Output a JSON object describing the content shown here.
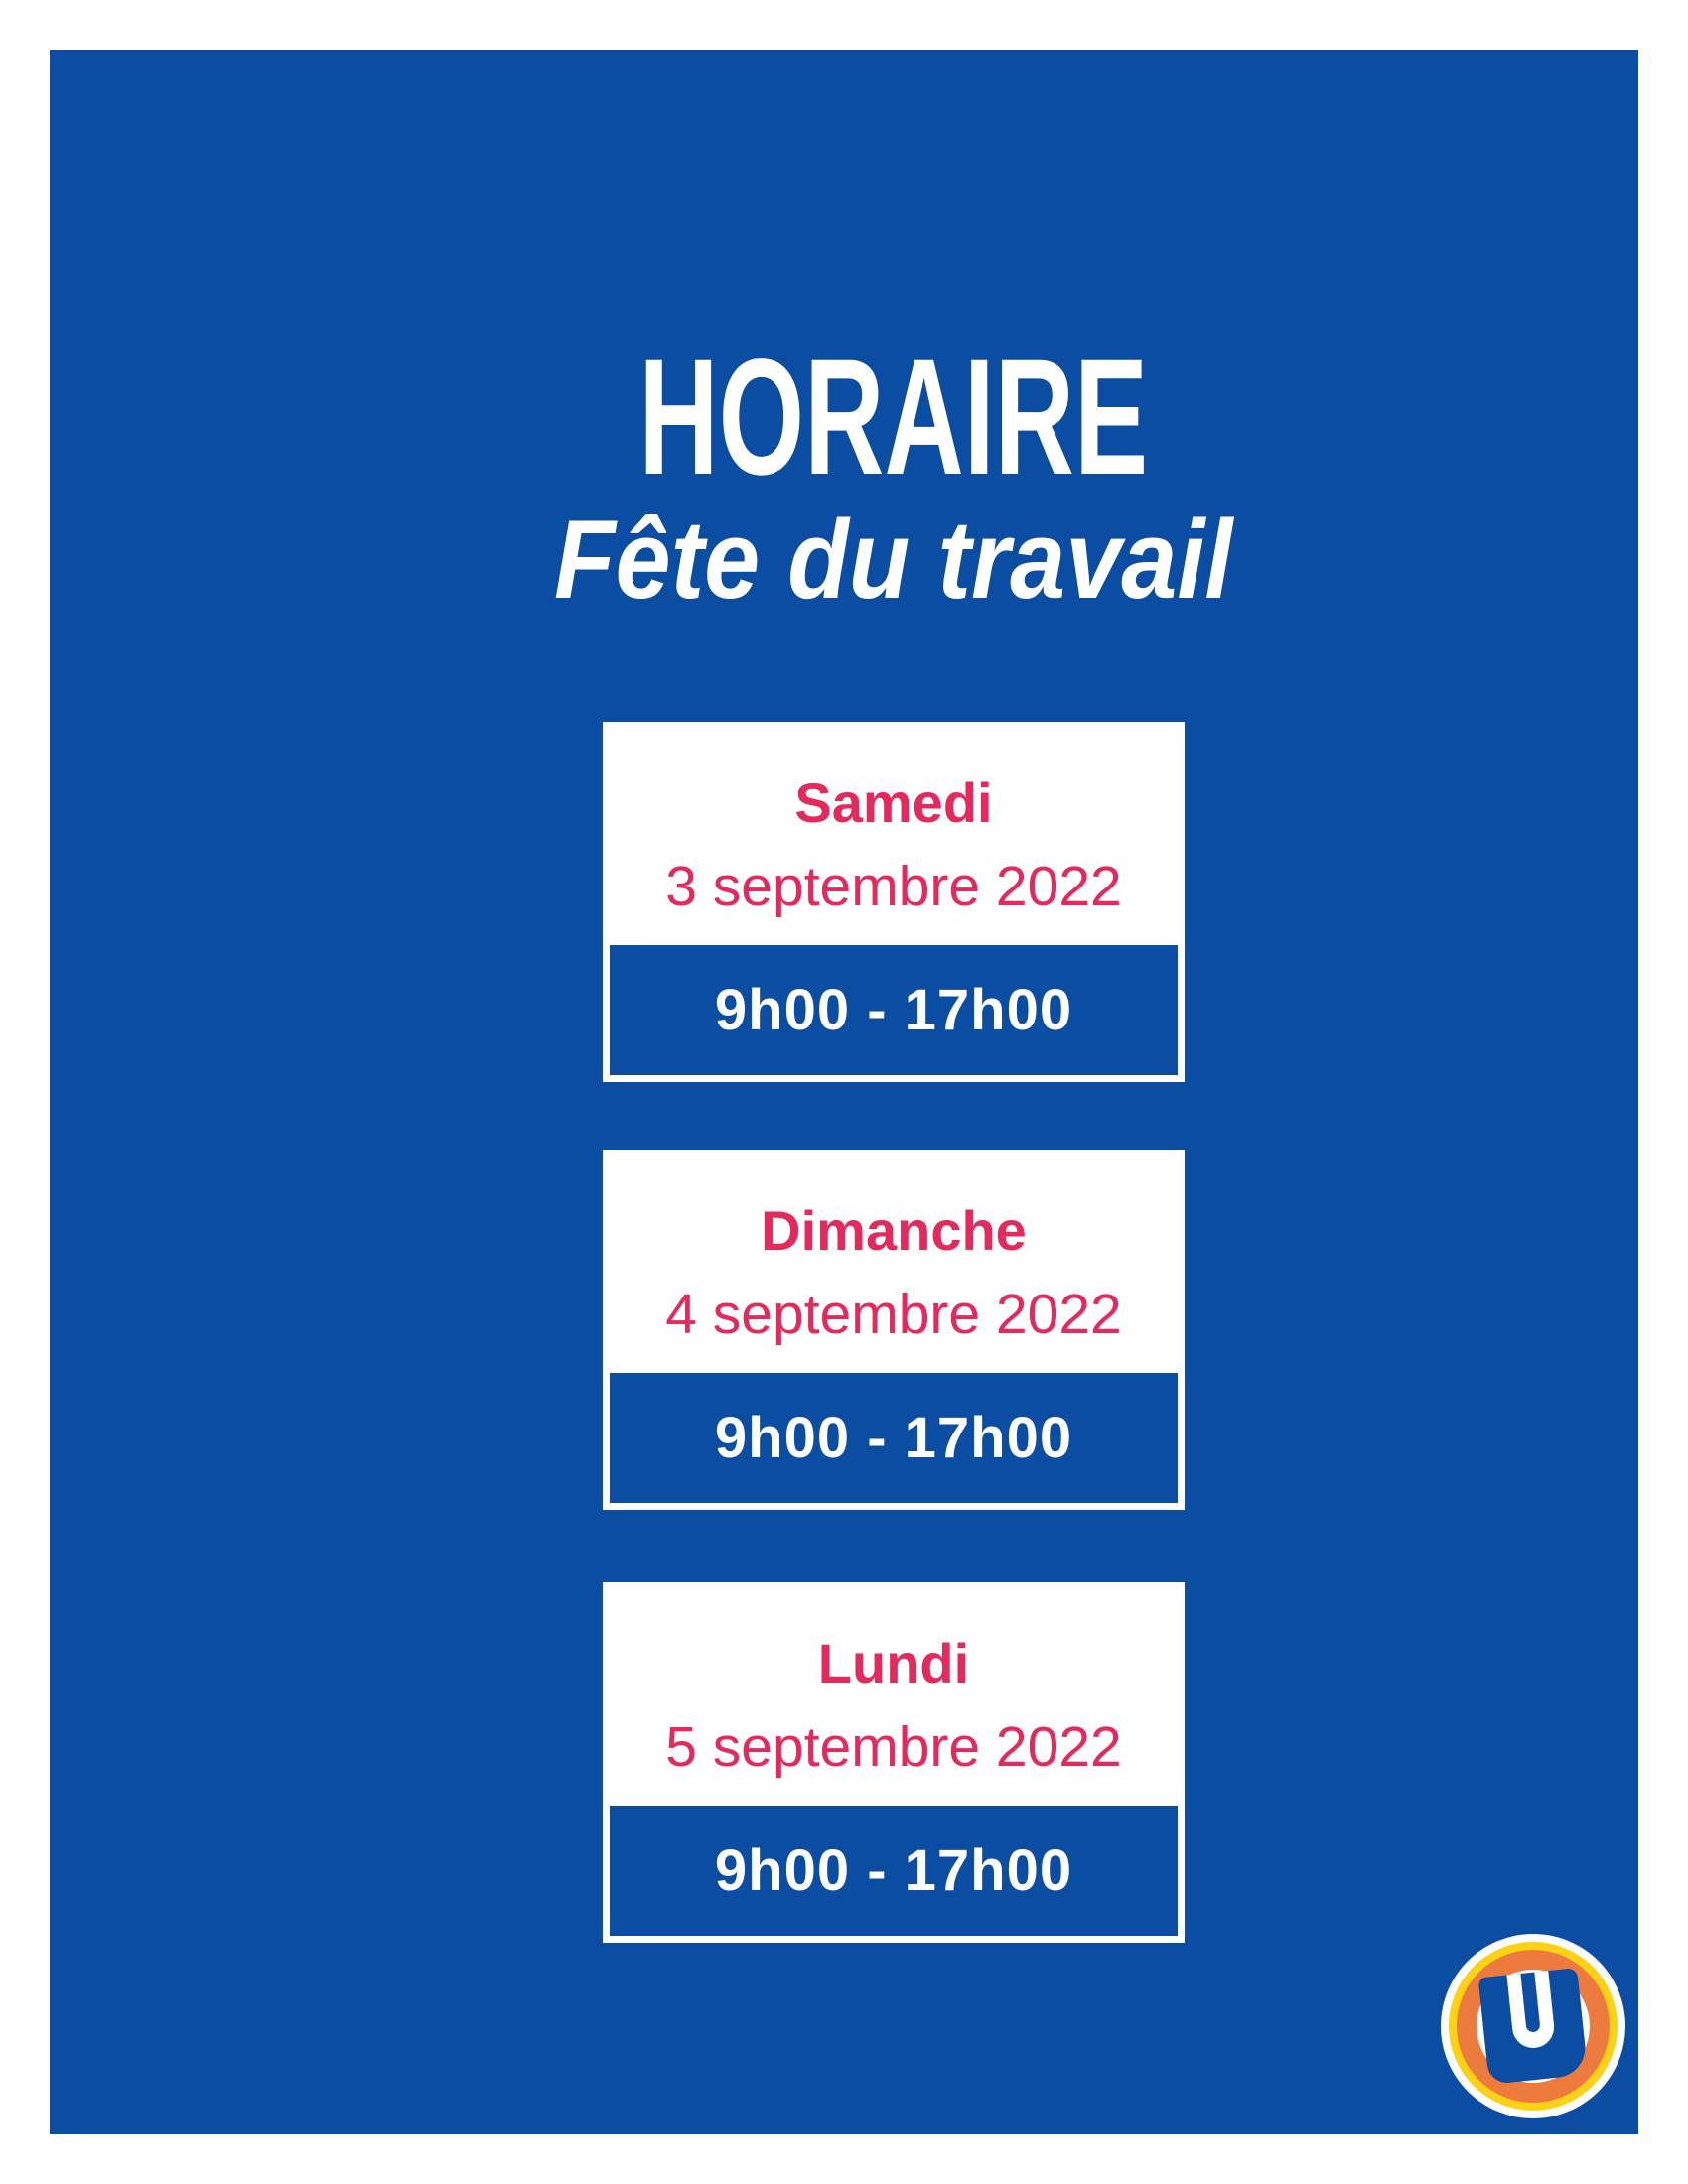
{
  "poster": {
    "title": "HORAIRE",
    "subtitle": "Fête du travail",
    "cards": [
      {
        "day": "Samedi",
        "date": "3 septembre 2022",
        "hours": "9h00 - 17h00"
      },
      {
        "day": "Dimanche",
        "date": "4 septembre 2022",
        "hours": "9h00 - 17h00"
      },
      {
        "day": "Lundi",
        "date": "5 septembre 2022",
        "hours": "9h00 - 17h00"
      }
    ],
    "logo": {
      "letter": "U"
    },
    "colors": {
      "background_blue": "#0a4da2",
      "accent_pink": "#e4295c",
      "logo_yellow": "#fcd116",
      "logo_orange": "#ec7b3d",
      "white": "#ffffff"
    }
  }
}
